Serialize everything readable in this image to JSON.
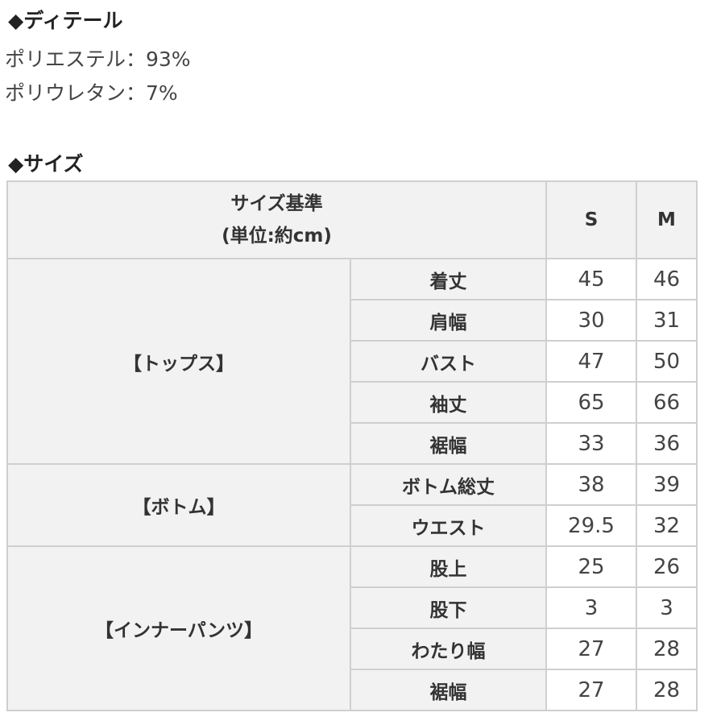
{
  "detail": {
    "heading": "◆ディテール",
    "lines": [
      "ポリエステル：93%",
      "ポリウレタン：7%"
    ]
  },
  "size": {
    "heading": "◆サイズ",
    "header": {
      "title": "サイズ基準",
      "unit": "(単位:約cm)",
      "sizes": [
        "S",
        "M"
      ]
    },
    "groups": [
      {
        "name": "【トップス】",
        "rows": [
          {
            "label": "着丈",
            "s": "45",
            "m": "46"
          },
          {
            "label": "肩幅",
            "s": "30",
            "m": "31"
          },
          {
            "label": "バスト",
            "s": "47",
            "m": "50"
          },
          {
            "label": "袖丈",
            "s": "65",
            "m": "66"
          },
          {
            "label": "裾幅",
            "s": "33",
            "m": "36"
          }
        ]
      },
      {
        "name": "【ボトム】",
        "rows": [
          {
            "label": "ボトム総丈",
            "s": "38",
            "m": "39"
          },
          {
            "label": "ウエスト",
            "s": "29.5",
            "m": "32"
          }
        ]
      },
      {
        "name": "【インナーパンツ】",
        "rows": [
          {
            "label": "股上",
            "s": "25",
            "m": "26"
          },
          {
            "label": "股下",
            "s": "3",
            "m": "3"
          },
          {
            "label": "わたり幅",
            "s": "27",
            "m": "28"
          },
          {
            "label": "裾幅",
            "s": "27",
            "m": "28"
          }
        ]
      }
    ]
  }
}
